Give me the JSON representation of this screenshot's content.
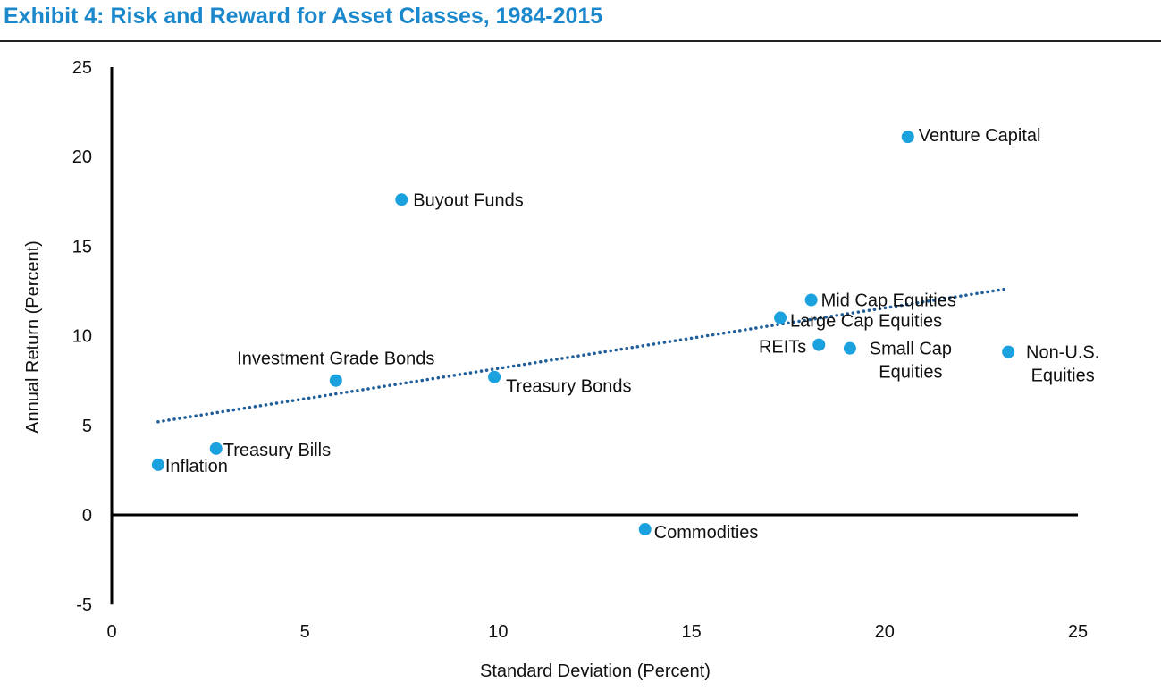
{
  "chart_data": {
    "type": "scatter",
    "title": "Exhibit 4: Risk and Reward for Asset Classes, 1984-2015",
    "xlabel": "Standard Deviation (Percent)",
    "ylabel": "Annual Return (Percent)",
    "xlim": [
      0,
      25
    ],
    "ylim": [
      -5,
      25
    ],
    "xticks": [
      0,
      5,
      10,
      15,
      20,
      25
    ],
    "yticks": [
      -5,
      0,
      5,
      10,
      15,
      20,
      25
    ],
    "grid": false,
    "point_color": "#1ba1dd",
    "trend_color": "#1f5e99",
    "title_color": "#1c88cc",
    "points": [
      {
        "name": "Inflation",
        "lines": [
          "Inflation"
        ],
        "x": 1.2,
        "y": 2.8
      },
      {
        "name": "Treasury Bills",
        "lines": [
          "Treasury Bills"
        ],
        "x": 2.7,
        "y": 3.7
      },
      {
        "name": "Investment Grade Bonds",
        "lines": [
          "Investment Grade Bonds"
        ],
        "x": 5.8,
        "y": 7.5
      },
      {
        "name": "Buyout Funds",
        "lines": [
          "Buyout Funds"
        ],
        "x": 7.5,
        "y": 17.6
      },
      {
        "name": "Treasury Bonds",
        "lines": [
          "Treasury Bonds"
        ],
        "x": 9.9,
        "y": 7.7
      },
      {
        "name": "Commodities",
        "lines": [
          "Commodities"
        ],
        "x": 13.8,
        "y": -0.8
      },
      {
        "name": "Large Cap Equities",
        "lines": [
          "Large Cap Equities"
        ],
        "x": 17.3,
        "y": 11.0
      },
      {
        "name": "Mid Cap Equities",
        "lines": [
          "Mid Cap Equities"
        ],
        "x": 18.1,
        "y": 12.0
      },
      {
        "name": "REITs",
        "lines": [
          "REITs"
        ],
        "x": 18.3,
        "y": 9.5
      },
      {
        "name": "Small Cap Equities",
        "lines": [
          "Small Cap",
          "Equities"
        ],
        "x": 19.1,
        "y": 9.3
      },
      {
        "name": "Venture Capital",
        "lines": [
          "Venture Capital"
        ],
        "x": 20.6,
        "y": 21.1
      },
      {
        "name": "Non-U.S. Equities",
        "lines": [
          "Non-U.S.",
          "Equities"
        ],
        "x": 23.2,
        "y": 9.1
      }
    ],
    "trendline": {
      "style": "dotted",
      "x": [
        1.2,
        23.1
      ],
      "y": [
        5.2,
        12.6
      ]
    }
  }
}
